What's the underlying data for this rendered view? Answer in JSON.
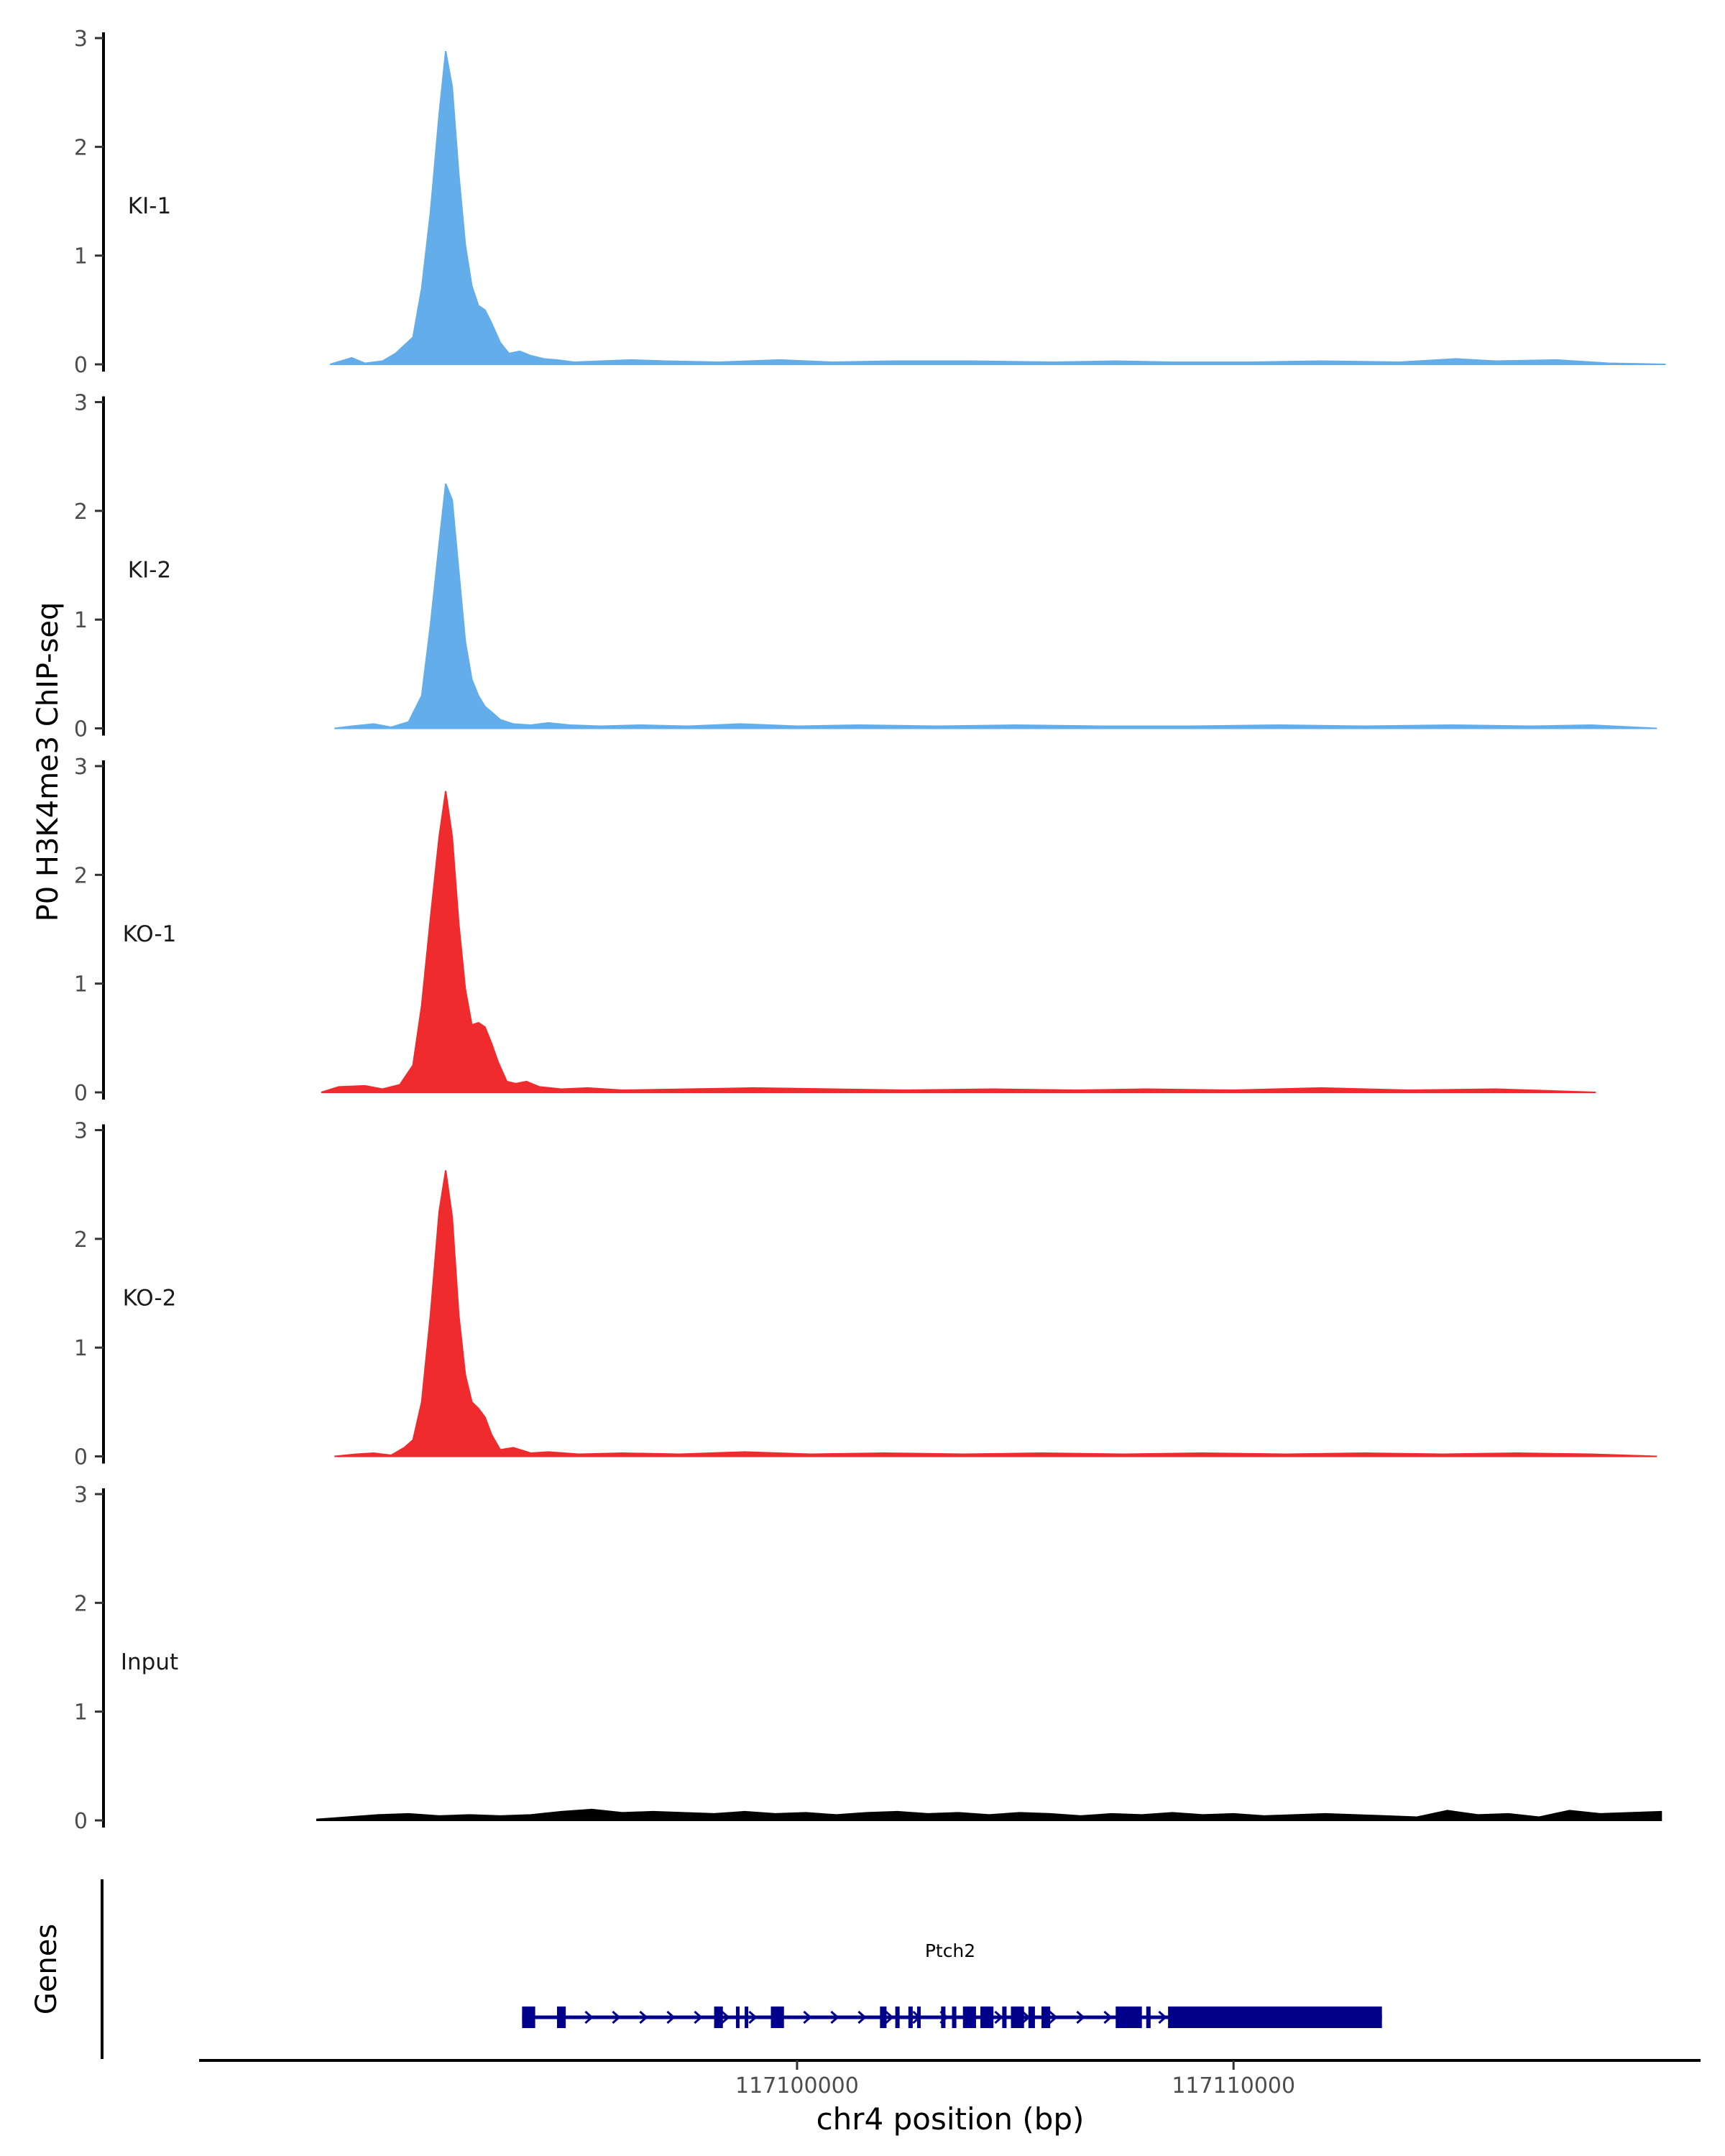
{
  "chart_data": {
    "type": "area",
    "ylabel": "P0 H3K4me3 ChIP-seq",
    "xlabel": "chr4 position (bp)",
    "xlim": [
      117086300,
      117120700
    ],
    "ylim": [
      0,
      3
    ],
    "y_ticks": [
      "0",
      "1",
      "2",
      "3"
    ],
    "x_ticks": [
      {
        "value": 117100000,
        "label": "117100000"
      },
      {
        "value": 117110000,
        "label": "117110000"
      }
    ],
    "series": [
      {
        "name": "KI-1",
        "color": "#63adea",
        "x": [
          117089300,
          117089800,
          117090100,
          117090500,
          117090800,
          117091200,
          117091400,
          117091600,
          117091800,
          117091950,
          117092100,
          117092250,
          117092400,
          117092550,
          117092700,
          117092850,
          117093000,
          117093200,
          117093400,
          117093650,
          117093900,
          117094200,
          117094500,
          117094900,
          117095500,
          117096200,
          117097000,
          117098200,
          117099600,
          117100800,
          117102200,
          117104000,
          117105900,
          117107300,
          117108600,
          117110400,
          117112000,
          117113800,
          117115100,
          117116000,
          117117400,
          117118600,
          117119900
        ],
        "values": [
          0,
          0.06,
          0.01,
          0.03,
          0.1,
          0.25,
          0.7,
          1.4,
          2.3,
          2.88,
          2.55,
          1.75,
          1.1,
          0.72,
          0.54,
          0.5,
          0.38,
          0.2,
          0.1,
          0.12,
          0.08,
          0.05,
          0.04,
          0.02,
          0.03,
          0.04,
          0.03,
          0.02,
          0.04,
          0.02,
          0.03,
          0.03,
          0.02,
          0.03,
          0.02,
          0.02,
          0.03,
          0.02,
          0.05,
          0.03,
          0.04,
          0.01,
          0
        ]
      },
      {
        "name": "KI-2",
        "color": "#63adea",
        "x": [
          117089400,
          117089800,
          117090300,
          117090700,
          117091100,
          117091400,
          117091600,
          117091800,
          117091950,
          117092100,
          117092250,
          117092400,
          117092550,
          117092700,
          117092850,
          117093000,
          117093200,
          117093500,
          117093900,
          117094300,
          117094800,
          117095500,
          117096400,
          117097500,
          117098700,
          117100000,
          117101400,
          117103200,
          117105000,
          117107000,
          117109000,
          117111000,
          117113000,
          117115000,
          117116800,
          117118200,
          117119700
        ],
        "values": [
          0,
          0.02,
          0.04,
          0.01,
          0.06,
          0.3,
          0.95,
          1.7,
          2.25,
          2.1,
          1.45,
          0.8,
          0.45,
          0.3,
          0.2,
          0.15,
          0.08,
          0.04,
          0.03,
          0.05,
          0.03,
          0.02,
          0.03,
          0.02,
          0.04,
          0.02,
          0.03,
          0.02,
          0.03,
          0.02,
          0.02,
          0.03,
          0.02,
          0.03,
          0.02,
          0.03,
          0
        ]
      },
      {
        "name": "KO-1",
        "color": "#ef2b2d",
        "x": [
          117089100,
          117089500,
          117090100,
          117090500,
          117090900,
          117091200,
          117091400,
          117091600,
          117091800,
          117091950,
          117092100,
          117092250,
          117092400,
          117092550,
          117092700,
          117092850,
          117093000,
          117093150,
          117093350,
          117093550,
          117093800,
          117094100,
          117094600,
          117095200,
          117096000,
          117097500,
          117099000,
          117100800,
          117102500,
          117104500,
          117106400,
          117108000,
          117110000,
          117112000,
          117114000,
          117116000,
          117118300
        ],
        "values": [
          0,
          0.05,
          0.06,
          0.03,
          0.07,
          0.25,
          0.8,
          1.6,
          2.35,
          2.77,
          2.35,
          1.55,
          0.95,
          0.62,
          0.64,
          0.6,
          0.45,
          0.28,
          0.1,
          0.08,
          0.1,
          0.05,
          0.03,
          0.04,
          0.02,
          0.03,
          0.04,
          0.03,
          0.02,
          0.03,
          0.02,
          0.03,
          0.02,
          0.04,
          0.02,
          0.03,
          0
        ]
      },
      {
        "name": "KO-2",
        "color": "#ef2b2d",
        "x": [
          117089400,
          117089900,
          117090300,
          117090700,
          117091000,
          117091200,
          117091400,
          117091600,
          117091800,
          117091950,
          117092100,
          117092250,
          117092400,
          117092550,
          117092700,
          117092850,
          117093000,
          117093200,
          117093500,
          117093900,
          117094300,
          117095000,
          117096000,
          117097300,
          117098800,
          117100300,
          117102000,
          117103800,
          117105600,
          117107500,
          117109300,
          117111200,
          117113000,
          117114800,
          117116500,
          117118200,
          117119700
        ],
        "values": [
          0,
          0.02,
          0.03,
          0.01,
          0.08,
          0.15,
          0.5,
          1.3,
          2.25,
          2.63,
          2.2,
          1.3,
          0.75,
          0.5,
          0.44,
          0.36,
          0.2,
          0.06,
          0.08,
          0.03,
          0.04,
          0.02,
          0.03,
          0.02,
          0.04,
          0.02,
          0.03,
          0.02,
          0.03,
          0.02,
          0.03,
          0.02,
          0.03,
          0.02,
          0.03,
          0.02,
          0
        ]
      },
      {
        "name": "Input",
        "color": "#000000",
        "x": [
          117089000,
          117089700,
          117090400,
          117091100,
          117091800,
          117092500,
          117093200,
          117093900,
          117094600,
          117095300,
          117096000,
          117096700,
          117097400,
          117098100,
          117098800,
          117099500,
          117100200,
          117100900,
          117101600,
          117102300,
          117103000,
          117103700,
          117104400,
          117105100,
          117105800,
          117106500,
          117107200,
          117107900,
          117108600,
          117109300,
          117110000,
          117110700,
          117111400,
          117112100,
          117112800,
          117113500,
          117114200,
          117114900,
          117115600,
          117116300,
          117117000,
          117117700,
          117118400,
          117119100,
          117119800
        ],
        "values": [
          0.01,
          0.03,
          0.05,
          0.06,
          0.04,
          0.05,
          0.04,
          0.05,
          0.08,
          0.1,
          0.07,
          0.08,
          0.07,
          0.06,
          0.08,
          0.06,
          0.07,
          0.05,
          0.07,
          0.08,
          0.06,
          0.07,
          0.05,
          0.07,
          0.06,
          0.04,
          0.06,
          0.05,
          0.07,
          0.05,
          0.06,
          0.04,
          0.05,
          0.06,
          0.05,
          0.04,
          0.03,
          0.09,
          0.05,
          0.06,
          0.03,
          0.09,
          0.06,
          0.07,
          0.08
        ]
      }
    ],
    "genes_track": {
      "label": "Genes",
      "gene": "Ptch2",
      "color": "#00008b",
      "start": 117093700,
      "end": 117113400,
      "exons": [
        [
          117093700,
          117094000
        ],
        [
          117094500,
          117094700
        ],
        [
          117098100,
          117098300
        ],
        [
          117098600,
          117098650
        ],
        [
          117098800,
          117098850
        ],
        [
          117099400,
          117099700
        ],
        [
          117101900,
          117102050
        ],
        [
          117102250,
          117102350
        ],
        [
          117102550,
          117102650
        ],
        [
          117102750,
          117102800
        ],
        [
          117103300,
          117103400
        ],
        [
          117103550,
          117103650
        ],
        [
          117103800,
          117104100
        ],
        [
          117104200,
          117104500
        ],
        [
          117104700,
          117104800
        ],
        [
          117104900,
          117105200
        ],
        [
          117105300,
          117105450
        ],
        [
          117105600,
          117105800
        ],
        [
          117107300,
          117107900
        ],
        [
          117108000,
          117108100
        ],
        [
          117108500,
          117113400
        ]
      ]
    }
  }
}
